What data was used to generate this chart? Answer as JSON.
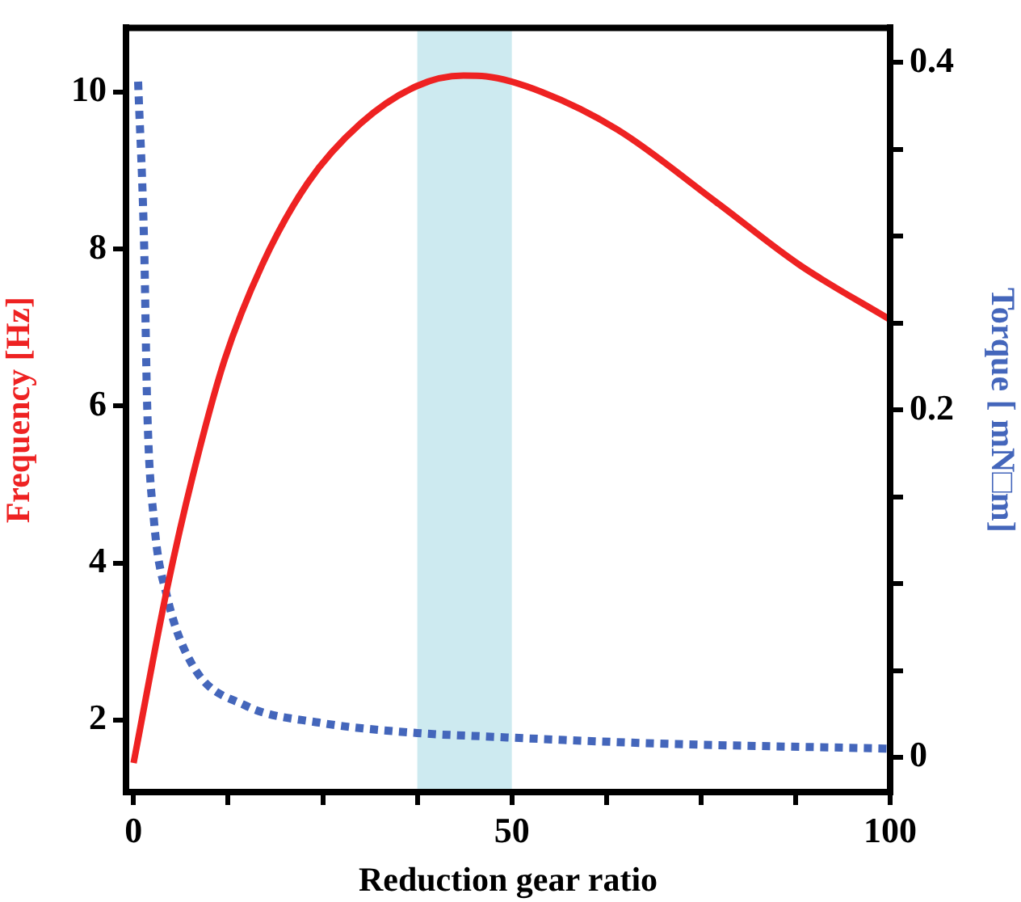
{
  "chart_data": {
    "type": "line",
    "xlabel": "Reduction gear ratio",
    "ylabel": "Frequency [Hz]",
    "y2label": "Torque [ mN□m]",
    "xlim": [
      -1,
      100
    ],
    "xticks": [
      0,
      {
        "value": 12.5,
        "label": null
      },
      {
        "value": 25,
        "label": null
      },
      {
        "value": 37.5,
        "label": null
      },
      50,
      {
        "value": 62.5,
        "label": null
      },
      {
        "value": 75,
        "label": null
      },
      {
        "value": 87.5,
        "label": null
      },
      100
    ],
    "ylim": [
      1.08,
      10.82
    ],
    "yticks": [
      2,
      4,
      6,
      8,
      10
    ],
    "y2lim": [
      -0.02,
      0.42
    ],
    "y2ticks": [
      0,
      {
        "value": 0.05,
        "label": null
      },
      {
        "value": 0.1,
        "label": null
      },
      {
        "value": 0.15,
        "label": null
      },
      0.2,
      {
        "value": 0.25,
        "label": null
      },
      {
        "value": 0.3,
        "label": null
      },
      {
        "value": 0.35,
        "label": null
      },
      0.4
    ],
    "grid": false,
    "legend": false,
    "marker": "none",
    "bands": [
      {
        "axis": "x",
        "from": 37.5,
        "to": 50,
        "color": "#cdeaf0"
      }
    ],
    "series": [
      {
        "color": "#ee2222",
        "line_style": "solid",
        "x": [
          0,
          4.4,
          7.8,
          12,
          17,
          23,
          30,
          37.5,
          43.6,
          46.6,
          54,
          64,
          77,
          88,
          100
        ],
        "values": [
          1.45,
          3.66,
          5.1,
          6.58,
          7.8,
          8.84,
          9.6,
          10.08,
          10.21,
          10.2,
          10.0,
          9.52,
          8.6,
          7.8,
          7.1
        ]
      },
      {
        "color": "#4466bb",
        "line_style": "dotted",
        "axis": "y2",
        "x": [
          0.6,
          1.4,
          1.8,
          2.7,
          4.4,
          7.8,
          14.7,
          24.5,
          37.5,
          46.6,
          69,
          100
        ],
        "values": [
          0.389,
          0.294,
          0.202,
          0.136,
          0.093,
          0.053,
          0.03,
          0.02,
          0.014,
          0.012,
          0.008,
          0.005
        ]
      }
    ]
  }
}
